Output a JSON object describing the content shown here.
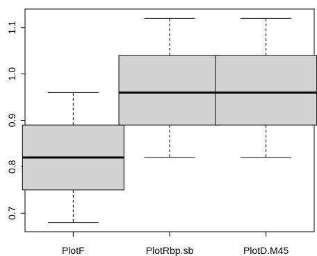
{
  "chart_data": {
    "type": "boxplot",
    "title": "",
    "xlabel": "",
    "ylabel": "",
    "categories": [
      "PlotF",
      "PlotRbp.sb",
      "PlotD.M45"
    ],
    "y_ticks": [
      0.7,
      0.8,
      0.9,
      1.0,
      1.1
    ],
    "y_tick_labels": [
      "0.7",
      "0.8",
      "0.9",
      "1.0",
      "1.1"
    ],
    "ylim": [
      0.66,
      1.14
    ],
    "grid": false,
    "legend": "none",
    "boxes": [
      {
        "name": "PlotF",
        "min": 0.68,
        "q1": 0.75,
        "median": 0.82,
        "q3": 0.89,
        "max": 0.96
      },
      {
        "name": "PlotRbp.sb",
        "min": 0.82,
        "q1": 0.89,
        "median": 0.96,
        "q3": 1.04,
        "max": 1.12
      },
      {
        "name": "PlotD.M45",
        "min": 0.82,
        "q1": 0.89,
        "median": 0.96,
        "q3": 1.04,
        "max": 1.12
      }
    ],
    "colors": {
      "box_fill": "#d3d3d3",
      "stroke": "#000000"
    }
  }
}
